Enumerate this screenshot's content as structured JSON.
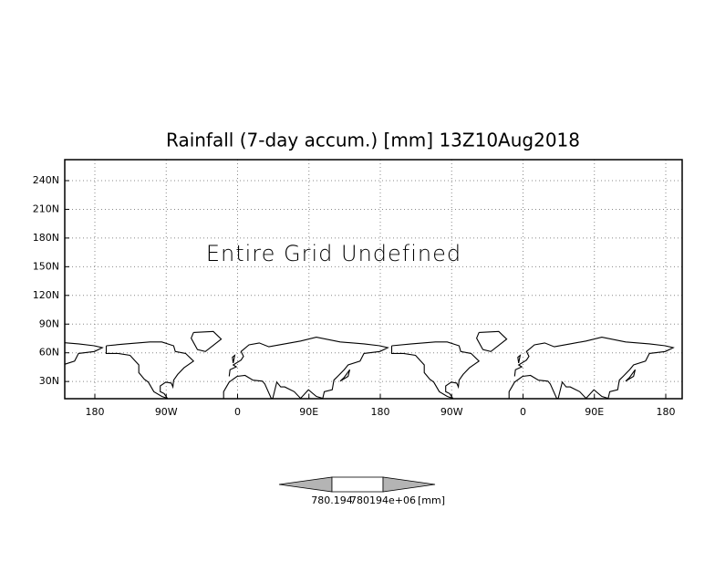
{
  "title": "Rainfall (7-day accum.) [mm] 13Z10Aug2018",
  "message": "Entire Grid Undefined",
  "y_labels": [
    "240N",
    "210N",
    "180N",
    "150N",
    "120N",
    "90N",
    "60N",
    "30N"
  ],
  "x_labels": [
    "180",
    "90W",
    "0",
    "90E",
    "180",
    "90W",
    "0",
    "90E",
    "180"
  ],
  "colorbar": {
    "labels": [
      "780.194",
      "780194e+06"
    ],
    "unit": "[mm]"
  }
}
